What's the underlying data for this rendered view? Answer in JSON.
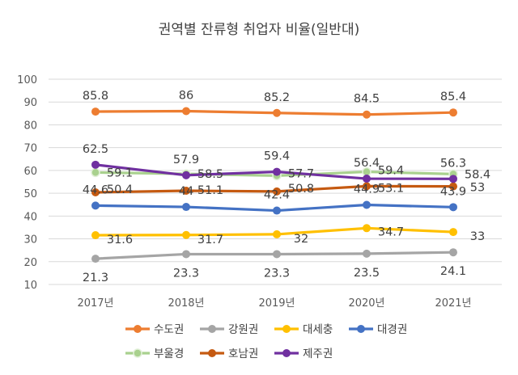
{
  "chart_data": {
    "type": "line",
    "title": "권역별 잔류형 취업자 비율(일반대)",
    "categories": [
      "2017년",
      "2018년",
      "2019년",
      "2020년",
      "2021년"
    ],
    "ylim": [
      10,
      100
    ],
    "yticks": [
      10,
      20,
      30,
      40,
      50,
      60,
      70,
      80,
      90,
      100
    ],
    "grid": true,
    "legend_position": "bottom",
    "series": [
      {
        "name": "수도권",
        "color": "#ED7D31",
        "values": [
          85.8,
          86,
          85.2,
          84.5,
          85.4
        ]
      },
      {
        "name": "강원권",
        "color": "#A5A5A5",
        "values": [
          21.3,
          23.3,
          23.3,
          23.5,
          24.1
        ]
      },
      {
        "name": "대세충",
        "color": "#FFC000",
        "values": [
          31.6,
          31.7,
          32,
          34.7,
          33
        ]
      },
      {
        "name": "대경권",
        "color": "#4472C4",
        "values": [
          44.6,
          44,
          42.4,
          44.9,
          43.9
        ]
      },
      {
        "name": "부울경",
        "color": "#A9D18E",
        "values": [
          59.1,
          58.5,
          57.7,
          59.4,
          58.4
        ]
      },
      {
        "name": "호남권",
        "color": "#C55A11",
        "values": [
          50.4,
          51.1,
          50.8,
          53.1,
          53
        ]
      },
      {
        "name": "제주권",
        "color": "#7030A0",
        "values": [
          62.5,
          57.9,
          59.4,
          56.4,
          56.3
        ]
      }
    ]
  }
}
